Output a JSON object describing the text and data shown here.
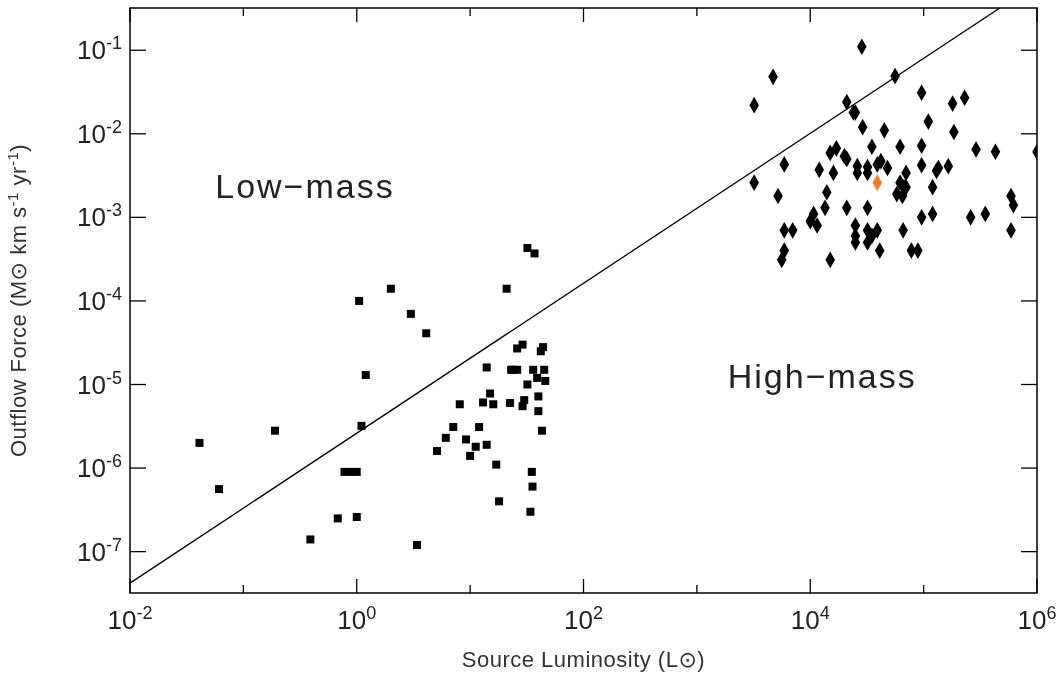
{
  "chart_data": {
    "type": "scatter",
    "xlabel": "Source Luminosity (L⊙)",
    "ylabel": "Outflow Force (M⊙ km s$^{-1}$ yr$^{-1}$)",
    "annotations": [
      "Low−mass",
      "High−mass"
    ],
    "log": "xy",
    "grid": false,
    "xlim": [
      0.01,
      1000000
    ],
    "xticks": [
      {
        "value": 0.01,
        "label": "10$^{-2}$"
      },
      {
        "value": 0.1,
        "label": null
      },
      {
        "value": 1,
        "label": "10$^{0}$"
      },
      {
        "value": 10,
        "label": null
      },
      {
        "value": 100,
        "label": "10$^{2}$"
      },
      {
        "value": 1000,
        "label": null
      },
      {
        "value": 10000,
        "label": "10$^{4}$"
      },
      {
        "value": 100000,
        "label": null
      },
      {
        "value": 1000000,
        "label": "10$^{6}$"
      }
    ],
    "ylim": [
      3.2e-08,
      0.32
    ],
    "yticks": [
      {
        "value": 1e-07,
        "label": "10$^{-7}$"
      },
      {
        "value": 1e-06,
        "label": "10$^{-6}$"
      },
      {
        "value": 1e-05,
        "label": "10$^{-5}$"
      },
      {
        "value": 0.0001,
        "label": "10$^{-4}$"
      },
      {
        "value": 0.001,
        "label": "10$^{-3}$"
      },
      {
        "value": 0.01,
        "label": "10$^{-2}$"
      },
      {
        "value": 0.1,
        "label": "10$^{-1}$"
      }
    ],
    "series": [
      {
        "type": "line",
        "color": "#000000",
        "marker": "none",
        "line_style": "solid",
        "x": [
          0.01,
          470000
        ],
        "values": [
          4.2e-08,
          0.32
        ]
      },
      {
        "color": "#000000",
        "marker": "square",
        "x": [
          0.041,
          0.061,
          0.19,
          0.39,
          0.68,
          1.0,
          0.78,
          0.88,
          1.0,
          1.1,
          1.2,
          3.4,
          14
        ],
        "values": [
          2e-06,
          5.6e-07,
          2.8e-06,
          1.4e-07,
          2.5e-07,
          2.6e-07,
          9e-07,
          9e-07,
          9e-07,
          3.2e-06,
          1.3e-05,
          1.2e-07,
          1.9e-06
        ]
      },
      {
        "color": "#000000",
        "marker": "square",
        "x": [
          1.05,
          2.0,
          3.0,
          4.1,
          32,
          37,
          21,
          29,
          26,
          44,
          42,
          14,
          23,
          24,
          26,
          36,
          45,
          39,
          46,
          32,
          15,
          40,
          8.1,
          13,
          16,
          22.5,
          30,
          29,
          40,
          7.1,
          12,
          43,
          6.1,
          9.2,
          11.2,
          5.1,
          10,
          17,
          35,
          35.5,
          18,
          34
        ],
        "values": [
          0.0001,
          0.00014,
          7e-05,
          4.1e-05,
          0.00043,
          0.00037,
          0.00014,
          3e-05,
          2.7e-05,
          2.8e-05,
          2.5e-05,
          1.6e-05,
          1.5e-05,
          1.5e-05,
          1.5e-05,
          1.5e-05,
          1.5e-05,
          1.2e-05,
          1.1e-05,
          1e-05,
          7.8e-06,
          7.2e-06,
          5.8e-06,
          6.1e-06,
          5.8e-06,
          6e-06,
          6.5e-06,
          5.5e-06,
          4.8e-06,
          3.1e-06,
          3.1e-06,
          2.8e-06,
          2.3e-06,
          2.2e-06,
          1.8e-06,
          1.6e-06,
          1.4e-06,
          1.1e-06,
          9e-07,
          6e-07,
          4e-07,
          3e-07
        ]
      },
      {
        "color": "#000000",
        "marker": "diamond",
        "x": [
          28500,
          4700,
          3200,
          21000,
          24000,
          25000,
          29000,
          45000,
          35000,
          17000,
          15000,
          20000,
          21000,
          5900,
          12000,
          16000,
          26000,
          26000,
          32000,
          32000,
          39000,
          42000,
          48000,
          3200,
          5200,
          14000,
          13500,
          21000,
          32000,
          10700,
          10000,
          11500,
          5900,
          7000,
          25000,
          32000,
          39000,
          25000,
          35000,
          25000,
          32000,
          41000,
          5900,
          5600,
          15000,
          56000,
          96000,
          180000,
          230000,
          110000,
          185000,
          62000,
          96000,
          290000,
          430000,
          1000000,
          70000,
          96000,
          130000,
          135000,
          165000,
          62000,
          67000,
          70000,
          58000,
          65000,
          120000,
          590000,
          620000,
          96000,
          120000,
          260000,
          350000,
          590000,
          66000,
          78000,
          89000
        ],
        "values": [
          0.11,
          0.048,
          0.022,
          0.024,
          0.018,
          0.018,
          0.012,
          0.011,
          0.007,
          0.0067,
          0.0059,
          0.0054,
          0.005,
          0.0043,
          0.0037,
          0.0034,
          0.0041,
          0.0034,
          0.004,
          0.0034,
          0.0043,
          0.0047,
          0.0039,
          0.0026,
          0.0018,
          0.002,
          0.0013,
          0.0013,
          0.0013,
          0.0011,
          0.0009,
          0.0008,
          0.0007,
          0.0007,
          0.0008,
          0.0007,
          0.0007,
          0.0006,
          0.0006,
          0.0005,
          0.0005,
          0.0004,
          0.0004,
          0.00031,
          0.00031,
          0.049,
          0.031,
          0.023,
          0.027,
          0.014,
          0.0105,
          0.007,
          0.0072,
          0.0065,
          0.0061,
          0.0061,
          0.0034,
          0.0042,
          0.0036,
          0.0039,
          0.0041,
          0.0026,
          0.0023,
          0.0023,
          0.0019,
          0.0018,
          0.0023,
          0.0018,
          0.0014,
          0.001,
          0.0011,
          0.001,
          0.0011,
          0.0007,
          0.0007,
          0.0004,
          0.0004
        ]
      },
      {
        "color": "#f07f2a",
        "marker": "diamond",
        "x": [
          39000
        ],
        "values": [
          0.0026
        ]
      }
    ]
  }
}
